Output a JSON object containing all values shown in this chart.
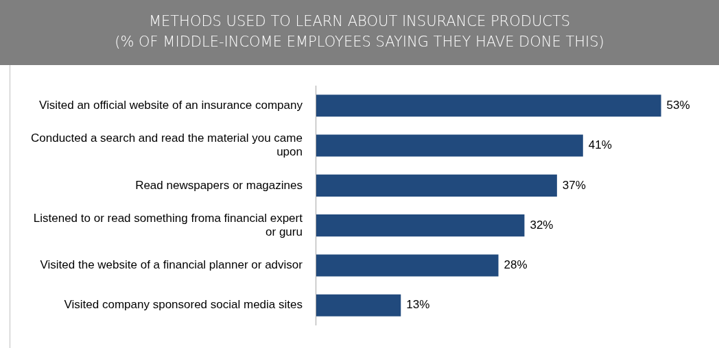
{
  "chart_data": {
    "type": "bar",
    "orientation": "horizontal",
    "title": "METHODS USED TO LEARN ABOUT INSURANCE PRODUCTS",
    "subtitle": "(% OF MIDDLE-INCOME EMPLOYEES SAYING THEY HAVE DONE THIS)",
    "categories": [
      "Visited an official website of an insurance company",
      "Conducted a search and read the material you came upon",
      "Read newspapers or magazines",
      "Listened to or read something froma financial expert or guru",
      "Visited the website of a financial planner or advisor",
      "Visited company sponsored social media sites"
    ],
    "values": [
      53,
      41,
      37,
      32,
      28,
      13
    ],
    "color": "#214a7d",
    "value_labels": [
      "53%",
      "41%",
      "37%",
      "32%",
      "28%",
      "13%"
    ],
    "legend": false
  }
}
